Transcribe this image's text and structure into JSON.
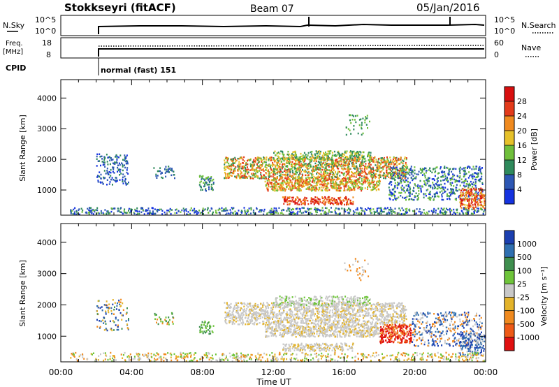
{
  "header": {
    "station": "Stokkseyri (fitACF)",
    "beam": "Beam 07",
    "date": "05/Jan/2016"
  },
  "noise_panel": {
    "left_label": "N.Sky",
    "right_label": "N.Search",
    "ticks_left": [
      "10^5",
      "10^0"
    ],
    "ticks_right": [
      "10^5",
      "10^0"
    ]
  },
  "freq_panel": {
    "left_label_1": "Freq.",
    "left_label_2": "[MHz]",
    "right_label": "Nave",
    "ticks_left": [
      "18",
      "8"
    ],
    "ticks_right": [
      "60",
      "0"
    ]
  },
  "cpid": {
    "label": "CPID",
    "value": "normal (fast) 151"
  },
  "x_axis": {
    "label": "Time UT",
    "ticks": [
      "00:00",
      "04:00",
      "08:00",
      "12:00",
      "16:00",
      "20:00",
      "00:00"
    ]
  },
  "chart_data": [
    {
      "type": "heatmap",
      "name": "power",
      "ylabel": "Slant Range [km]",
      "yticks": [
        1000,
        2000,
        3000,
        4000
      ],
      "ylim": [
        180,
        4600
      ],
      "xlim_hours": [
        0,
        24
      ],
      "colorbar": {
        "label": "Power [dB]",
        "ticks": [
          "4",
          "8",
          "12",
          "16",
          "20",
          "24",
          "28"
        ],
        "colors": [
          "#1533e0",
          "#2d57b4",
          "#2f8a5c",
          "#6fbf3b",
          "#e6c12a",
          "#f08a1f",
          "#e33a1a",
          "#d80f0f"
        ]
      }
    },
    {
      "type": "heatmap",
      "name": "velocity",
      "ylabel": "Slant Range [km]",
      "yticks": [
        1000,
        2000,
        3000,
        4000
      ],
      "ylim": [
        180,
        4600
      ],
      "xlim_hours": [
        0,
        24
      ],
      "colorbar": {
        "label": "Velocity [m s⁻¹]",
        "ticks": [
          "1000",
          "500",
          "100",
          "25",
          "-25",
          "-100",
          "-500",
          "-1000"
        ],
        "colors": [
          "#1b3fb0",
          "#2f6fb0",
          "#3f8f4f",
          "#6ec43a",
          "#c8c8c8",
          "#e3b32a",
          "#f08a1f",
          "#ee5a16",
          "#e01010"
        ]
      }
    }
  ]
}
